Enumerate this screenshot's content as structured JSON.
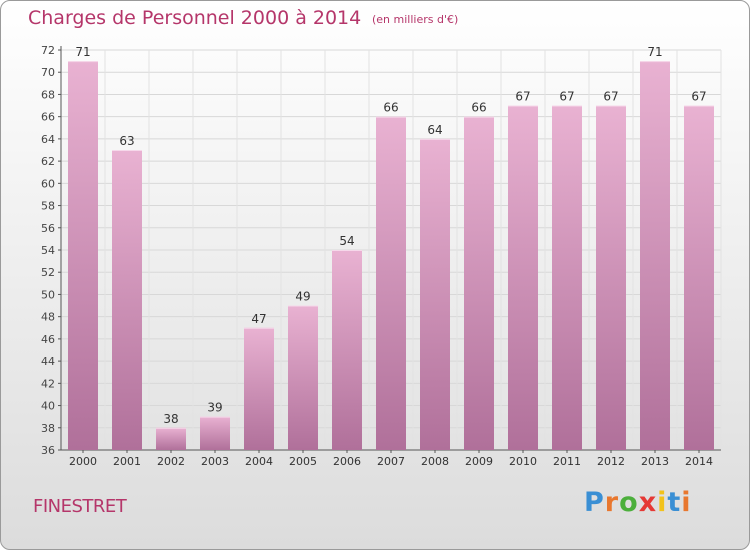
{
  "header": {
    "title": "Charges de Personnel 2000 à 2014",
    "unit": "(en milliers d'€)"
  },
  "footer": {
    "place": "FINESTRET",
    "logo_letters": [
      {
        "ch": "P",
        "color": "#3a8fd4"
      },
      {
        "ch": "r",
        "color": "#e8772e"
      },
      {
        "ch": "o",
        "color": "#4caf3c"
      },
      {
        "ch": "x",
        "color": "#e53935"
      },
      {
        "ch": "i",
        "color": "#f2c21b"
      },
      {
        "ch": "t",
        "color": "#3a8fd4"
      },
      {
        "ch": "i",
        "color": "#e8772e"
      }
    ]
  },
  "colors": {
    "accent": "#b5366a",
    "bar_light": "#e9b2d2",
    "bar_dark": "#b0709a"
  },
  "chart_data": {
    "type": "bar",
    "categories": [
      "2000",
      "2001",
      "2002",
      "2003",
      "2004",
      "2005",
      "2006",
      "2007",
      "2008",
      "2009",
      "2010",
      "2011",
      "2012",
      "2013",
      "2014"
    ],
    "values": [
      71,
      63,
      38,
      39,
      47,
      49,
      54,
      66,
      64,
      66,
      67,
      67,
      67,
      71,
      67
    ],
    "ylim": [
      36,
      72
    ],
    "yticks": [
      36,
      38,
      40,
      42,
      44,
      46,
      48,
      50,
      52,
      54,
      56,
      58,
      60,
      62,
      64,
      66,
      68,
      70,
      72
    ],
    "grid": true,
    "legend": "none"
  }
}
